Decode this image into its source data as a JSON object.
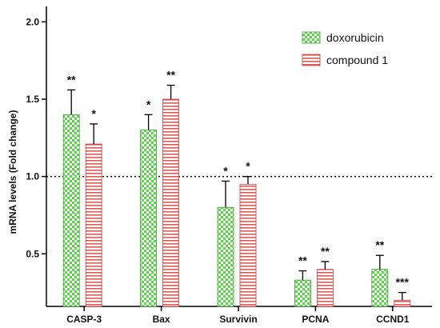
{
  "chart_data": {
    "type": "bar",
    "title": "",
    "xlabel": "",
    "ylabel": "mRNA levels (Fold change)",
    "ylim": [
      0.16,
      2.1
    ],
    "yticks": [
      "0.5",
      "1.0",
      "1.5",
      "2.0"
    ],
    "yticks_values": [
      0.5,
      1.0,
      1.5,
      2.0
    ],
    "reference_line": 1.0,
    "legend_position": "top-right",
    "categories": [
      "CASP-3",
      "Bax",
      "Survivin",
      "PCNA",
      "CCND1"
    ],
    "series": [
      {
        "name": "doxorubicin",
        "pattern": "checkerboard",
        "color": "#5bd84a",
        "values": [
          1.4,
          1.3,
          0.8,
          0.33,
          0.4
        ],
        "errors": [
          0.16,
          0.1,
          0.17,
          0.06,
          0.09
        ],
        "significance": [
          "**",
          "*",
          "*",
          "**",
          "**"
        ]
      },
      {
        "name": "compound 1",
        "pattern": "horizontal-stripes",
        "color": "#e05858",
        "values": [
          1.21,
          1.5,
          0.95,
          0.4,
          0.2
        ],
        "errors": [
          0.13,
          0.09,
          0.05,
          0.05,
          0.05
        ],
        "significance": [
          "*",
          "**",
          "*",
          "**",
          "***"
        ]
      }
    ]
  }
}
